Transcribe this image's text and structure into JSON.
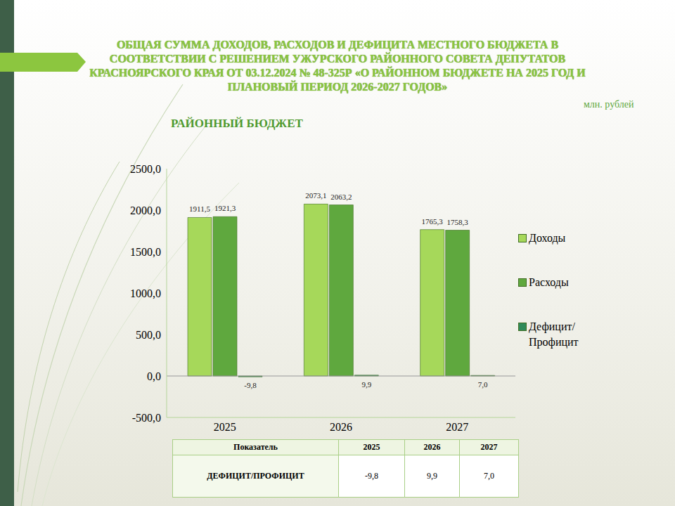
{
  "chart_data": {
    "type": "bar",
    "title": "ОБЩАЯ СУММА ДОХОДОВ, РАСХОДОВ  И ДЕФИЦИТА МЕСТНОГО БЮДЖЕТА В СООТВЕТСТВИИ С РЕШЕНИЕМ  УЖУРСКОГО РАЙОННОГО СОВЕТА ДЕПУТАТОВ КРАСНОЯРСКОГО КРАЯ ОТ  03.12.2024 № 48-325Р «О РАЙОННОМ БЮДЖЕТЕ НА 2025 ГОД И ПЛАНОВЫЙ ПЕРИОД 2026-2027 ГОДОВ»",
    "subtitle": "РАЙОННЫЙ БЮДЖЕТ",
    "annotations": [
      "млн. рублей"
    ],
    "categories": [
      "2025",
      "2026",
      "2027"
    ],
    "series": [
      {
        "name": "Доходы",
        "color": "#a6d85a",
        "values": [
          1911.5,
          2073.1,
          1765.3
        ],
        "value_labels": [
          "1911,5",
          "2073,1",
          "1765,3"
        ]
      },
      {
        "name": "Расходы",
        "color": "#5fa83e",
        "values": [
          1921.3,
          2063.2,
          1758.3
        ],
        "value_labels": [
          "1921,3",
          "2063,2",
          "1758,3"
        ]
      },
      {
        "name": "Дефицит/ Профицит",
        "color": "#2f8a5a",
        "values": [
          -9.8,
          9.9,
          7.0
        ],
        "value_labels": [
          "-9,8",
          "9,9",
          "7,0"
        ]
      }
    ],
    "ylim": [
      -500,
      2500
    ],
    "yticks": [
      {
        "value": -500,
        "label": "-500,0"
      },
      {
        "value": 0,
        "label": "0,0"
      },
      {
        "value": 500,
        "label": "500,0"
      },
      {
        "value": 1000,
        "label": "1000,0"
      },
      {
        "value": 1500,
        "label": "1500,0"
      },
      {
        "value": 2000,
        "label": "2000,0"
      },
      {
        "value": 2500,
        "label": "2500,0"
      }
    ],
    "grid": false,
    "legend": "right",
    "data_labels": true
  },
  "table": {
    "header": [
      "Показатель",
      "2025",
      "2026",
      "2027"
    ],
    "rows": [
      [
        "ДЕФИЦИТ/ПРОФИЦИТ",
        "-9,8",
        "9,9",
        "7,0"
      ]
    ]
  }
}
